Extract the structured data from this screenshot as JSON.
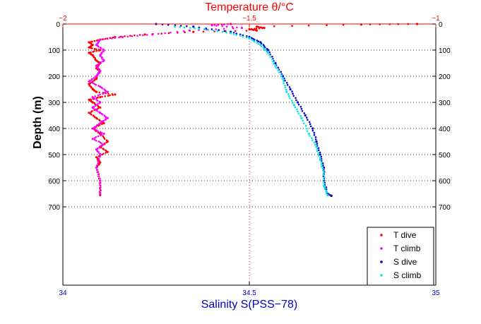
{
  "chart_data": {
    "type": "scatter",
    "top_axis": {
      "label": "Temperature θ/°C",
      "range": [
        -2,
        -1
      ],
      "ticks": [
        -2,
        -1.5,
        -1
      ],
      "tick_labels": [
        "−2",
        "−1.5",
        "−1"
      ],
      "color": "#ff0000"
    },
    "bottom_axis": {
      "label": "Salinity S(PSS−78)",
      "range": [
        34,
        35
      ],
      "ticks": [
        34,
        34.5,
        35
      ],
      "tick_labels": [
        "34",
        "34.5",
        "35"
      ],
      "color": "#0000cc"
    },
    "y_axis": {
      "label": "Depth (m)",
      "range": [
        0,
        1000
      ],
      "inverted": true,
      "ticks": [
        0,
        100,
        200,
        300,
        400,
        500,
        600,
        700
      ],
      "tick_labels": [
        "0",
        "100",
        "200",
        "300",
        "400",
        "500",
        "600",
        "700"
      ]
    },
    "grid": "dotted at labeled depths and at axis midpoint",
    "legend_position": "bottom-right",
    "series": [
      {
        "name": "T dive",
        "axis": "top",
        "color": "#ff0000",
        "points": [
          [
            -1.05,
            0
          ],
          [
            -1.2,
            2
          ],
          [
            -1.48,
            10
          ],
          [
            -1.46,
            15
          ],
          [
            -1.5,
            20
          ],
          [
            -1.48,
            25
          ],
          [
            -1.65,
            30
          ],
          [
            -1.78,
            40
          ],
          [
            -1.86,
            50
          ],
          [
            -1.9,
            60
          ],
          [
            -1.93,
            70
          ],
          [
            -1.92,
            80
          ],
          [
            -1.93,
            90
          ],
          [
            -1.9,
            100
          ],
          [
            -1.93,
            110
          ],
          [
            -1.92,
            120
          ],
          [
            -1.91,
            140
          ],
          [
            -1.9,
            150
          ],
          [
            -1.91,
            170
          ],
          [
            -1.9,
            180
          ],
          [
            -1.91,
            200
          ],
          [
            -1.91,
            210
          ],
          [
            -1.93,
            230
          ],
          [
            -1.92,
            250
          ],
          [
            -1.91,
            260
          ],
          [
            -1.86,
            270
          ],
          [
            -1.9,
            280
          ],
          [
            -1.93,
            290
          ],
          [
            -1.92,
            300
          ],
          [
            -1.9,
            320
          ],
          [
            -1.93,
            340
          ],
          [
            -1.91,
            360
          ],
          [
            -1.89,
            380
          ],
          [
            -1.92,
            400
          ],
          [
            -1.9,
            420
          ],
          [
            -1.88,
            450
          ],
          [
            -1.9,
            470
          ],
          [
            -1.88,
            490
          ],
          [
            -1.91,
            510
          ],
          [
            -1.9,
            530
          ],
          [
            -1.91,
            550
          ],
          [
            -1.9,
            600
          ],
          [
            -1.9,
            655
          ]
        ]
      },
      {
        "name": "T climb",
        "axis": "top",
        "color": "#ff00ff",
        "points": [
          [
            -1.55,
            0
          ],
          [
            -1.6,
            5
          ],
          [
            -1.52,
            15
          ],
          [
            -1.66,
            25
          ],
          [
            -1.76,
            40
          ],
          [
            -1.84,
            50
          ],
          [
            -1.9,
            60
          ],
          [
            -1.91,
            80
          ],
          [
            -1.89,
            100
          ],
          [
            -1.9,
            120
          ],
          [
            -1.89,
            140
          ],
          [
            -1.91,
            160
          ],
          [
            -1.9,
            180
          ],
          [
            -1.91,
            200
          ],
          [
            -1.93,
            220
          ],
          [
            -1.9,
            240
          ],
          [
            -1.88,
            260
          ],
          [
            -1.92,
            280
          ],
          [
            -1.9,
            300
          ],
          [
            -1.92,
            320
          ],
          [
            -1.9,
            340
          ],
          [
            -1.88,
            360
          ],
          [
            -1.9,
            380
          ],
          [
            -1.92,
            400
          ],
          [
            -1.89,
            420
          ],
          [
            -1.92,
            440
          ],
          [
            -1.89,
            460
          ],
          [
            -1.91,
            480
          ],
          [
            -1.9,
            500
          ],
          [
            -1.91,
            550
          ],
          [
            -1.9,
            600
          ],
          [
            -1.9,
            650
          ]
        ]
      },
      {
        "name": "S dive",
        "axis": "bottom",
        "color": "#0000cc",
        "points": [
          [
            34.25,
            0
          ],
          [
            34.35,
            10
          ],
          [
            34.45,
            30
          ],
          [
            34.5,
            50
          ],
          [
            34.53,
            70
          ],
          [
            34.55,
            100
          ],
          [
            34.57,
            150
          ],
          [
            34.59,
            200
          ],
          [
            34.61,
            250
          ],
          [
            34.63,
            300
          ],
          [
            34.65,
            350
          ],
          [
            34.67,
            400
          ],
          [
            34.68,
            450
          ],
          [
            34.69,
            500
          ],
          [
            34.7,
            550
          ],
          [
            34.7,
            600
          ],
          [
            34.71,
            650
          ],
          [
            34.72,
            658
          ]
        ]
      },
      {
        "name": "S climb",
        "axis": "bottom",
        "color": "#00e5e5",
        "points": [
          [
            34.3,
            10
          ],
          [
            34.38,
            20
          ],
          [
            34.45,
            35
          ],
          [
            34.5,
            55
          ],
          [
            34.53,
            80
          ],
          [
            34.55,
            110
          ],
          [
            34.57,
            160
          ],
          [
            34.59,
            210
          ],
          [
            34.6,
            260
          ],
          [
            34.62,
            310
          ],
          [
            34.64,
            360
          ],
          [
            34.66,
            420
          ],
          [
            34.68,
            470
          ],
          [
            34.69,
            520
          ],
          [
            34.7,
            570
          ],
          [
            34.7,
            620
          ],
          [
            34.71,
            655
          ]
        ]
      }
    ]
  }
}
